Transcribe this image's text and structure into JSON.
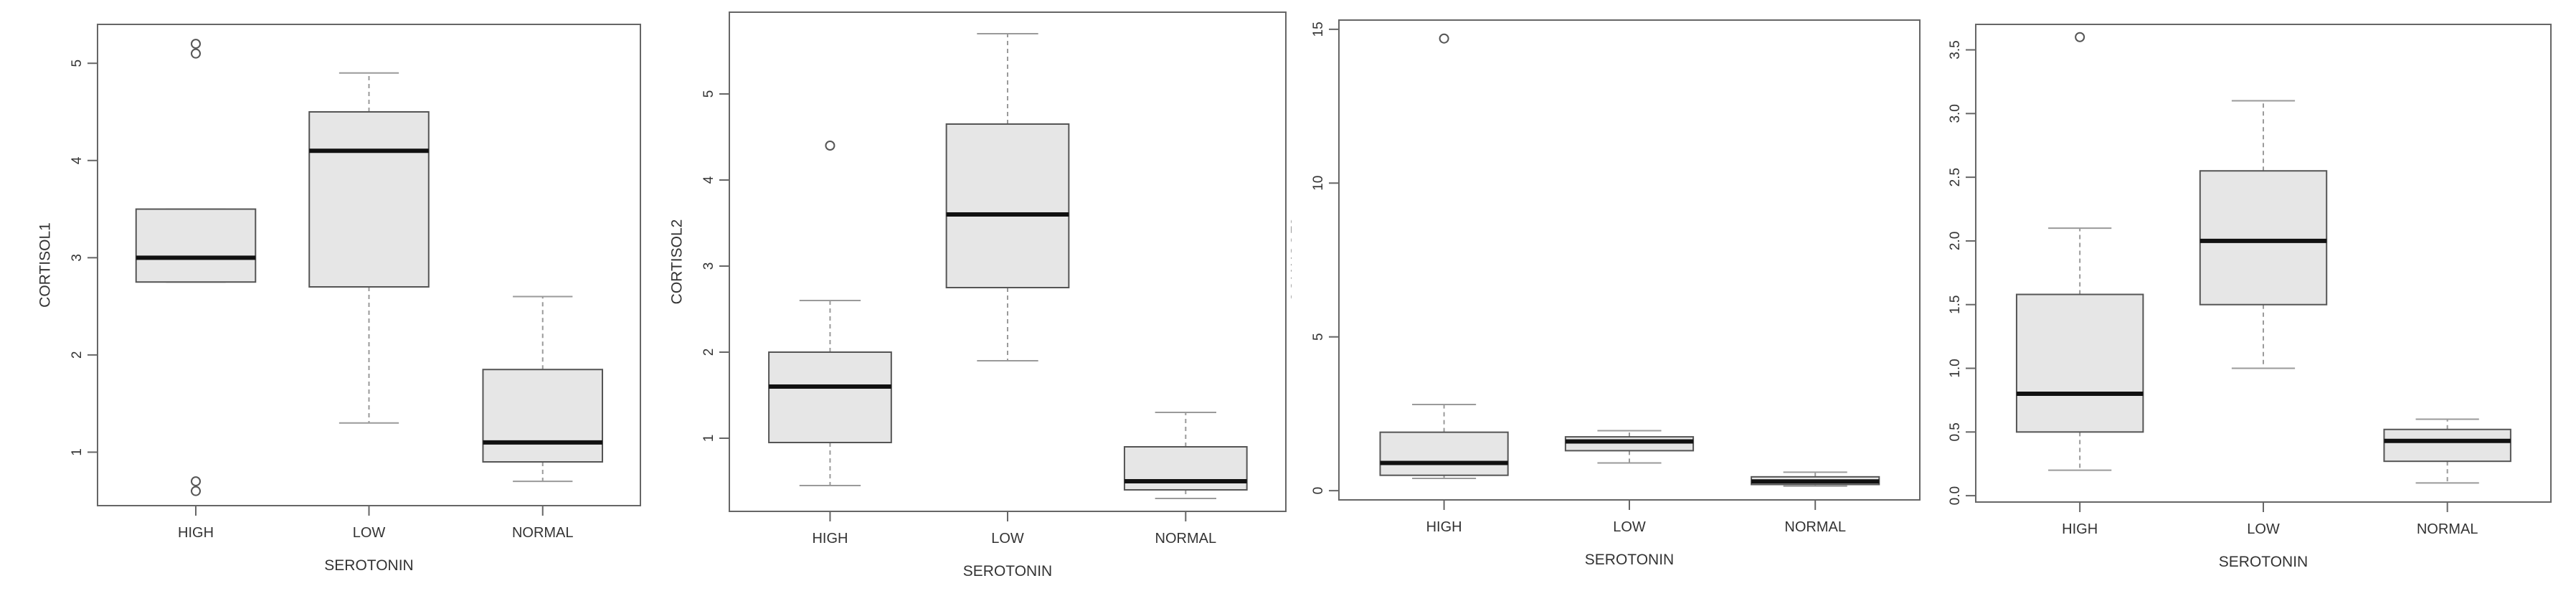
{
  "chart_data": [
    {
      "type": "boxplot",
      "xlabel": "SEROTONIN",
      "ylabel": "CORTISOL1",
      "categories": [
        "HIGH",
        "LOW",
        "NORMAL"
      ],
      "yticks": [
        "1",
        "2",
        "3",
        "4",
        "5"
      ],
      "ylim": [
        0.45,
        5.4
      ],
      "boxes": [
        {
          "category": "HIGH",
          "whisker_low": 2.75,
          "q1": 2.75,
          "median": 3.0,
          "q3": 3.5,
          "whisker_high": 3.5,
          "outliers": [
            5.2,
            5.1,
            0.7,
            0.6
          ]
        },
        {
          "category": "LOW",
          "whisker_low": 1.3,
          "q1": 2.7,
          "median": 4.1,
          "q3": 4.5,
          "whisker_high": 4.9,
          "outliers": []
        },
        {
          "category": "NORMAL",
          "whisker_low": 0.7,
          "q1": 0.9,
          "median": 1.1,
          "q3": 1.85,
          "whisker_high": 2.6,
          "outliers": []
        }
      ]
    },
    {
      "type": "boxplot",
      "xlabel": "SEROTONIN",
      "ylabel": "CORTISOL2",
      "categories": [
        "HIGH",
        "LOW",
        "NORMAL"
      ],
      "yticks": [
        "1",
        "2",
        "3",
        "4",
        "5"
      ],
      "ylim": [
        0.15,
        5.95
      ],
      "boxes": [
        {
          "category": "HIGH",
          "whisker_low": 0.45,
          "q1": 0.95,
          "median": 1.6,
          "q3": 2.0,
          "whisker_high": 2.6,
          "outliers": [
            4.4
          ]
        },
        {
          "category": "LOW",
          "whisker_low": 1.9,
          "q1": 2.75,
          "median": 3.6,
          "q3": 4.65,
          "whisker_high": 5.7,
          "outliers": []
        },
        {
          "category": "NORMAL",
          "whisker_low": 0.3,
          "q1": 0.4,
          "median": 0.5,
          "q3": 0.9,
          "whisker_high": 1.3,
          "outliers": []
        }
      ]
    },
    {
      "type": "boxplot",
      "xlabel": "SEROTONIN",
      "ylabel": "CORTISOL3",
      "categories": [
        "HIGH",
        "LOW",
        "NORMAL"
      ],
      "yticks": [
        "0",
        "5",
        "10",
        "15"
      ],
      "ylim": [
        -0.3,
        15.3
      ],
      "boxes": [
        {
          "category": "HIGH",
          "whisker_low": 0.4,
          "q1": 0.5,
          "median": 0.9,
          "q3": 1.9,
          "whisker_high": 2.8,
          "outliers": [
            14.7
          ]
        },
        {
          "category": "LOW",
          "whisker_low": 0.9,
          "q1": 1.3,
          "median": 1.6,
          "q3": 1.75,
          "whisker_high": 1.95,
          "outliers": []
        },
        {
          "category": "NORMAL",
          "whisker_low": 0.15,
          "q1": 0.2,
          "median": 0.3,
          "q3": 0.45,
          "whisker_high": 0.6,
          "outliers": []
        }
      ]
    },
    {
      "type": "boxplot",
      "xlabel": "SEROTONIN",
      "ylabel": "CORTISOL4",
      "categories": [
        "HIGH",
        "LOW",
        "NORMAL"
      ],
      "yticks": [
        "0.0",
        "0.5",
        "1.0",
        "1.5",
        "2.0",
        "2.5",
        "3.0",
        "3.5"
      ],
      "ylim": [
        -0.05,
        3.7
      ],
      "boxes": [
        {
          "category": "HIGH",
          "whisker_low": 0.2,
          "q1": 0.5,
          "median": 0.8,
          "q3": 1.58,
          "whisker_high": 2.1,
          "outliers": [
            3.6
          ]
        },
        {
          "category": "LOW",
          "whisker_low": 1.0,
          "q1": 1.5,
          "median": 2.0,
          "q3": 2.55,
          "whisker_high": 3.1,
          "outliers": []
        },
        {
          "category": "NORMAL",
          "whisker_low": 0.1,
          "q1": 0.27,
          "median": 0.43,
          "q3": 0.52,
          "whisker_high": 0.6,
          "outliers": []
        }
      ]
    }
  ],
  "colors": {
    "box_fill": "#e6e6e6",
    "box_stroke": "#555555",
    "median": "#111111",
    "whisker": "#9a9a9a",
    "frame": "#666666",
    "text": "#333333"
  }
}
